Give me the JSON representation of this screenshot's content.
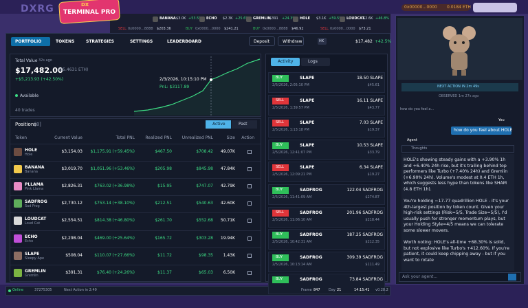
{
  "header": {
    "logo": "DXRG",
    "badge_top": "DX",
    "badge": "TERMINAL PRO",
    "wallet": "0x00000…0000",
    "wallet_balance": "0.0184 ETH"
  },
  "ticker": [
    {
      "symbol": "BANANA",
      "price": "$3.0K",
      "change": "+53.5%"
    },
    {
      "symbol": "ECHO",
      "price": "$2.3K",
      "change": "+25.6%"
    },
    {
      "symbol": "GREMLIN",
      "price": "$391",
      "change": "+24.3%"
    },
    {
      "symbol": "HOLE",
      "price": "$3.1K",
      "change": "+59.5%"
    },
    {
      "symbol": "LOUDCAT",
      "price": "$2.6K",
      "change": "+46.8%"
    }
  ],
  "trades_feed": [
    {
      "side": "SELL",
      "address": "0x0000…8888",
      "amount": "$203.36"
    },
    {
      "side": "BUY",
      "address": "0x0000…0000",
      "amount": "$241.21"
    },
    {
      "side": "BUY",
      "address": "0x0000…8888",
      "amount": "$46.92"
    },
    {
      "side": "SELL",
      "address": "0x0000…0000",
      "amount": "$73.21"
    }
  ],
  "side_colors": {
    "BUY": "#2fbf5a",
    "SELL": "#e0353a"
  },
  "nav": {
    "tabs": [
      "PORTFOLIO",
      "TOKENS",
      "STRATEGIES",
      "SETTINGS",
      "LEADERBOARD"
    ],
    "active_tab": 0,
    "deposit": "Deposit",
    "withdraw": "Withdraw",
    "hk": "HK",
    "value": "$17,482",
    "change": "+42.5%"
  },
  "total_value": {
    "label": "Total Value",
    "age": "32s ago",
    "amount": "$17,482.00",
    "eth": "($5.4631 ETH)",
    "pnl": "+$5,213.93 (+42.50%)",
    "available": "Available",
    "trades": "40 trades",
    "tooltip_time": "2/3/2026, 10:15:10 PM",
    "tooltip_pnl": "PnL: $3117.89"
  },
  "positions": {
    "title": "Positions",
    "count": "[8]",
    "tabs": [
      "Active",
      "Past"
    ],
    "active_tab": 0,
    "columns": [
      "Token",
      "Current Value",
      "Total PNL",
      "Realized PNL",
      "Unrealized PNL",
      "Size",
      "Action"
    ],
    "rows": [
      {
        "symbol": "HOLE",
        "name": "Hole",
        "value": "$3,154.03",
        "pnl": "$1,175.91",
        "pct": "(+59.45%)",
        "realized": "$467.50",
        "unrealized": "$708.42",
        "size": "49.07K",
        "color": "#6d4c41"
      },
      {
        "symbol": "BANANA",
        "name": "Banana",
        "value": "$3,019.70",
        "pnl": "$1,051.96",
        "pct": "(+53.46%)",
        "realized": "$205.98",
        "unrealized": "$845.98",
        "size": "47.84K",
        "color": "#f2c94c"
      },
      {
        "symbol": "PLLAMA",
        "name": "Pink Llama",
        "value": "$2,826.31",
        "pnl": "$763.02",
        "pct": "(+36.98%)",
        "realized": "$15.95",
        "unrealized": "$747.07",
        "size": "42.79K",
        "color": "#e88bc4"
      },
      {
        "symbol": "SADFROG",
        "name": "Sad Frog",
        "value": "$2,730.12",
        "pnl": "$753.14",
        "pct": "(+38.10%)",
        "realized": "$212.51",
        "unrealized": "$540.63",
        "size": "42.60K",
        "color": "#5fae5b"
      },
      {
        "symbol": "LOUDCAT",
        "name": "Loud Cat",
        "value": "$2,554.51",
        "pnl": "$814.38",
        "pct": "(+46.80%)",
        "realized": "$261.70",
        "unrealized": "$552.68",
        "size": "50.71K",
        "color": "#d9d9d9"
      },
      {
        "symbol": "ECHO",
        "name": "Echo",
        "value": "$2,298.04",
        "pnl": "$469.00",
        "pct": "(+25.64%)",
        "realized": "$165.72",
        "unrealized": "$303.28",
        "size": "19.94K",
        "color": "#c04fd8"
      },
      {
        "symbol": "SLAPE",
        "name": "Sleepy Ape",
        "value": "$508.04",
        "pnl": "$110.07",
        "pct": "(+27.66%)",
        "realized": "$11.72",
        "unrealized": "$98.35",
        "size": "1.43K",
        "color": "#8d6e63"
      },
      {
        "symbol": "GREMLIN",
        "name": "Gremlin",
        "value": "$391.31",
        "pnl": "$76.40",
        "pct": "(+24.26%)",
        "realized": "$11.37",
        "unrealized": "$65.03",
        "size": "6.50K",
        "color": "#7cb342"
      }
    ]
  },
  "activity": {
    "tabs": [
      "Activity",
      "Logs"
    ],
    "active_tab": 0,
    "items": [
      {
        "side": "BUY",
        "token": "SLAPE",
        "amount": "18.50 SLAPE",
        "time": "2/5/2026, 2:05:10 PM",
        "value": "$45.61"
      },
      {
        "side": "SELL",
        "token": "SLAPE",
        "amount": "16.11 SLAPE",
        "time": "2/5/2026, 1:39:57 PM",
        "value": "$43.77"
      },
      {
        "side": "SELL",
        "token": "SLAPE",
        "amount": "7.03 SLAPE",
        "time": "2/5/2026, 1:13:18 PM",
        "value": "$19.37"
      },
      {
        "side": "BUY",
        "token": "SLAPE",
        "amount": "10.53 SLAPE",
        "time": "2/5/2026, 12:41:07 PM",
        "value": "$33.79"
      },
      {
        "side": "SELL",
        "token": "SLAPE",
        "amount": "6.34 SLAPE",
        "time": "2/5/2026, 12:09:21 PM",
        "value": "$19.27"
      },
      {
        "side": "BUY",
        "token": "SADFROG",
        "amount": "122.04 SADFROG",
        "time": "2/5/2026, 11:41:09 AM",
        "value": "$274.87"
      },
      {
        "side": "SELL",
        "token": "SADFROG",
        "amount": "201.96 SADFROG",
        "time": "2/5/2026, 11:06:10 AM",
        "value": "$218.44"
      },
      {
        "side": "BUY",
        "token": "SADFROG",
        "amount": "187.25 SADFROG",
        "time": "2/5/2026, 10:42:31 AM",
        "value": "$212.35"
      },
      {
        "side": "BUY",
        "token": "SADFROG",
        "amount": "309.39 SADFROG",
        "time": "2/5/2026, 10:13:14 AM",
        "value": "$111.49"
      },
      {
        "side": "BUY",
        "token": "SADFROG",
        "amount": "73.84 SADFROG",
        "time": "",
        "value": ""
      }
    ]
  },
  "agent": {
    "next_action": "NEXT ACTION IN 2m 49s",
    "observed": "OBSERVED 1m 27s ago",
    "thread": "how do you feel a...",
    "you_label": "You",
    "question": "how do you feel about HOLE",
    "agent_label": "Agent",
    "thoughts": "Thoughts",
    "paragraphs": [
      "HOLE's showing steady gains with a +3.90% 1h and +6.40% 24h rise, but it's trailing behind top performers like Turbo (+7.40% 24h) and Gremlin (+6.90% 24h). Volume's modest at 0.4 ETH 1h, which suggests less hype than tokens like SHAM (4.8 ETH 1h).",
      "You're holding ~17.77 quadrillion HOLE - it's your 4th-largest position by token count. Given your high-risk settings (Risk=5/5, Trade Size=5/5), I'd usually push for stronger momentum plays, but your Holding Style=4/5 means we can tolerate some slower movers.",
      "Worth noting: HOLE's all-time +68.30% is solid, but not explosive like Turbo's +412.60%. If you're patient, it could keep chipping away - but if you want to rotate"
    ],
    "placeholder": "Ask your agent..."
  },
  "footer": {
    "status": "Online",
    "block": "37275305",
    "next": "Next Action in 2:49",
    "frame_label": "Frame",
    "frame": "847",
    "day_label": "Day",
    "day": "21",
    "clock": "14:15:41",
    "version": "v0.28.2"
  }
}
